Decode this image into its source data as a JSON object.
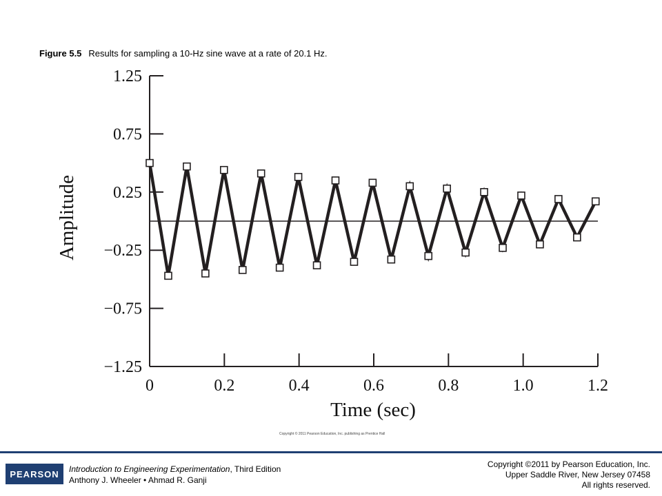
{
  "caption": {
    "figure_number": "Figure 5.5",
    "text": "Results for sampling a 10-Hz sine wave at a rate of 20.1 Hz."
  },
  "chart_data": {
    "type": "line",
    "xlabel": "Time (sec)",
    "ylabel": "Amplitude",
    "xlim": [
      0,
      1.2
    ],
    "ylim": [
      -1.25,
      1.25
    ],
    "x_ticks": [
      "0",
      "0.2",
      "0.4",
      "0.6",
      "0.8",
      "1.0",
      "1.2"
    ],
    "y_ticks": [
      "1.25",
      "0.75",
      "0.25",
      "−0.25",
      "−0.75",
      "−1.25"
    ],
    "reference_line": 0,
    "marker": "open-square",
    "line_color": "#231f20",
    "grid": false,
    "series": [
      {
        "x": [
          0.0,
          0.0498,
          0.0995,
          0.1493,
          0.199,
          0.2488,
          0.2985,
          0.3483,
          0.398,
          0.4478,
          0.4975,
          0.5473,
          0.597,
          0.6468,
          0.6965,
          0.7463,
          0.796,
          0.8458,
          0.8955,
          0.9453,
          0.995,
          1.0448,
          1.0945,
          1.1443,
          1.194
        ],
        "y": [
          0.5,
          -0.47,
          0.47,
          -0.45,
          0.44,
          -0.42,
          0.41,
          -0.4,
          0.38,
          -0.38,
          0.35,
          -0.35,
          0.33,
          -0.33,
          0.3,
          -0.3,
          0.28,
          -0.27,
          0.25,
          -0.23,
          0.22,
          -0.2,
          0.19,
          -0.14,
          0.17
        ]
      }
    ]
  },
  "small_copyright": "Copyright © 2011 Pearson Education, Inc. publishing as Prentice Hall",
  "footer": {
    "logo_text": "PEARSON",
    "book_title": "Introduction to Engineering Experimentation",
    "book_edition": ", Third Edition",
    "authors": "Anthony J. Wheeler • Ahmad R. Ganji",
    "copyright_line1": "Copyright ©2011 by Pearson Education, Inc.",
    "copyright_line2": "Upper Saddle River, New Jersey 07458",
    "copyright_line3": "All rights reserved."
  }
}
